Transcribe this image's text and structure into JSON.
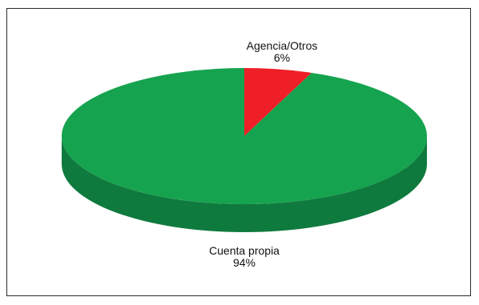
{
  "chart_data": {
    "type": "pie",
    "title": "",
    "legend": "none",
    "slices": [
      {
        "name": "Cuenta propia",
        "value": 94,
        "value_label": "94%",
        "color": "#16a34f",
        "side_color": "#0f7a3e"
      },
      {
        "name": "Agencia/Otros",
        "value": 6,
        "value_label": "6%",
        "color": "#ee1f26",
        "side_color": "#b8141a"
      }
    ]
  }
}
